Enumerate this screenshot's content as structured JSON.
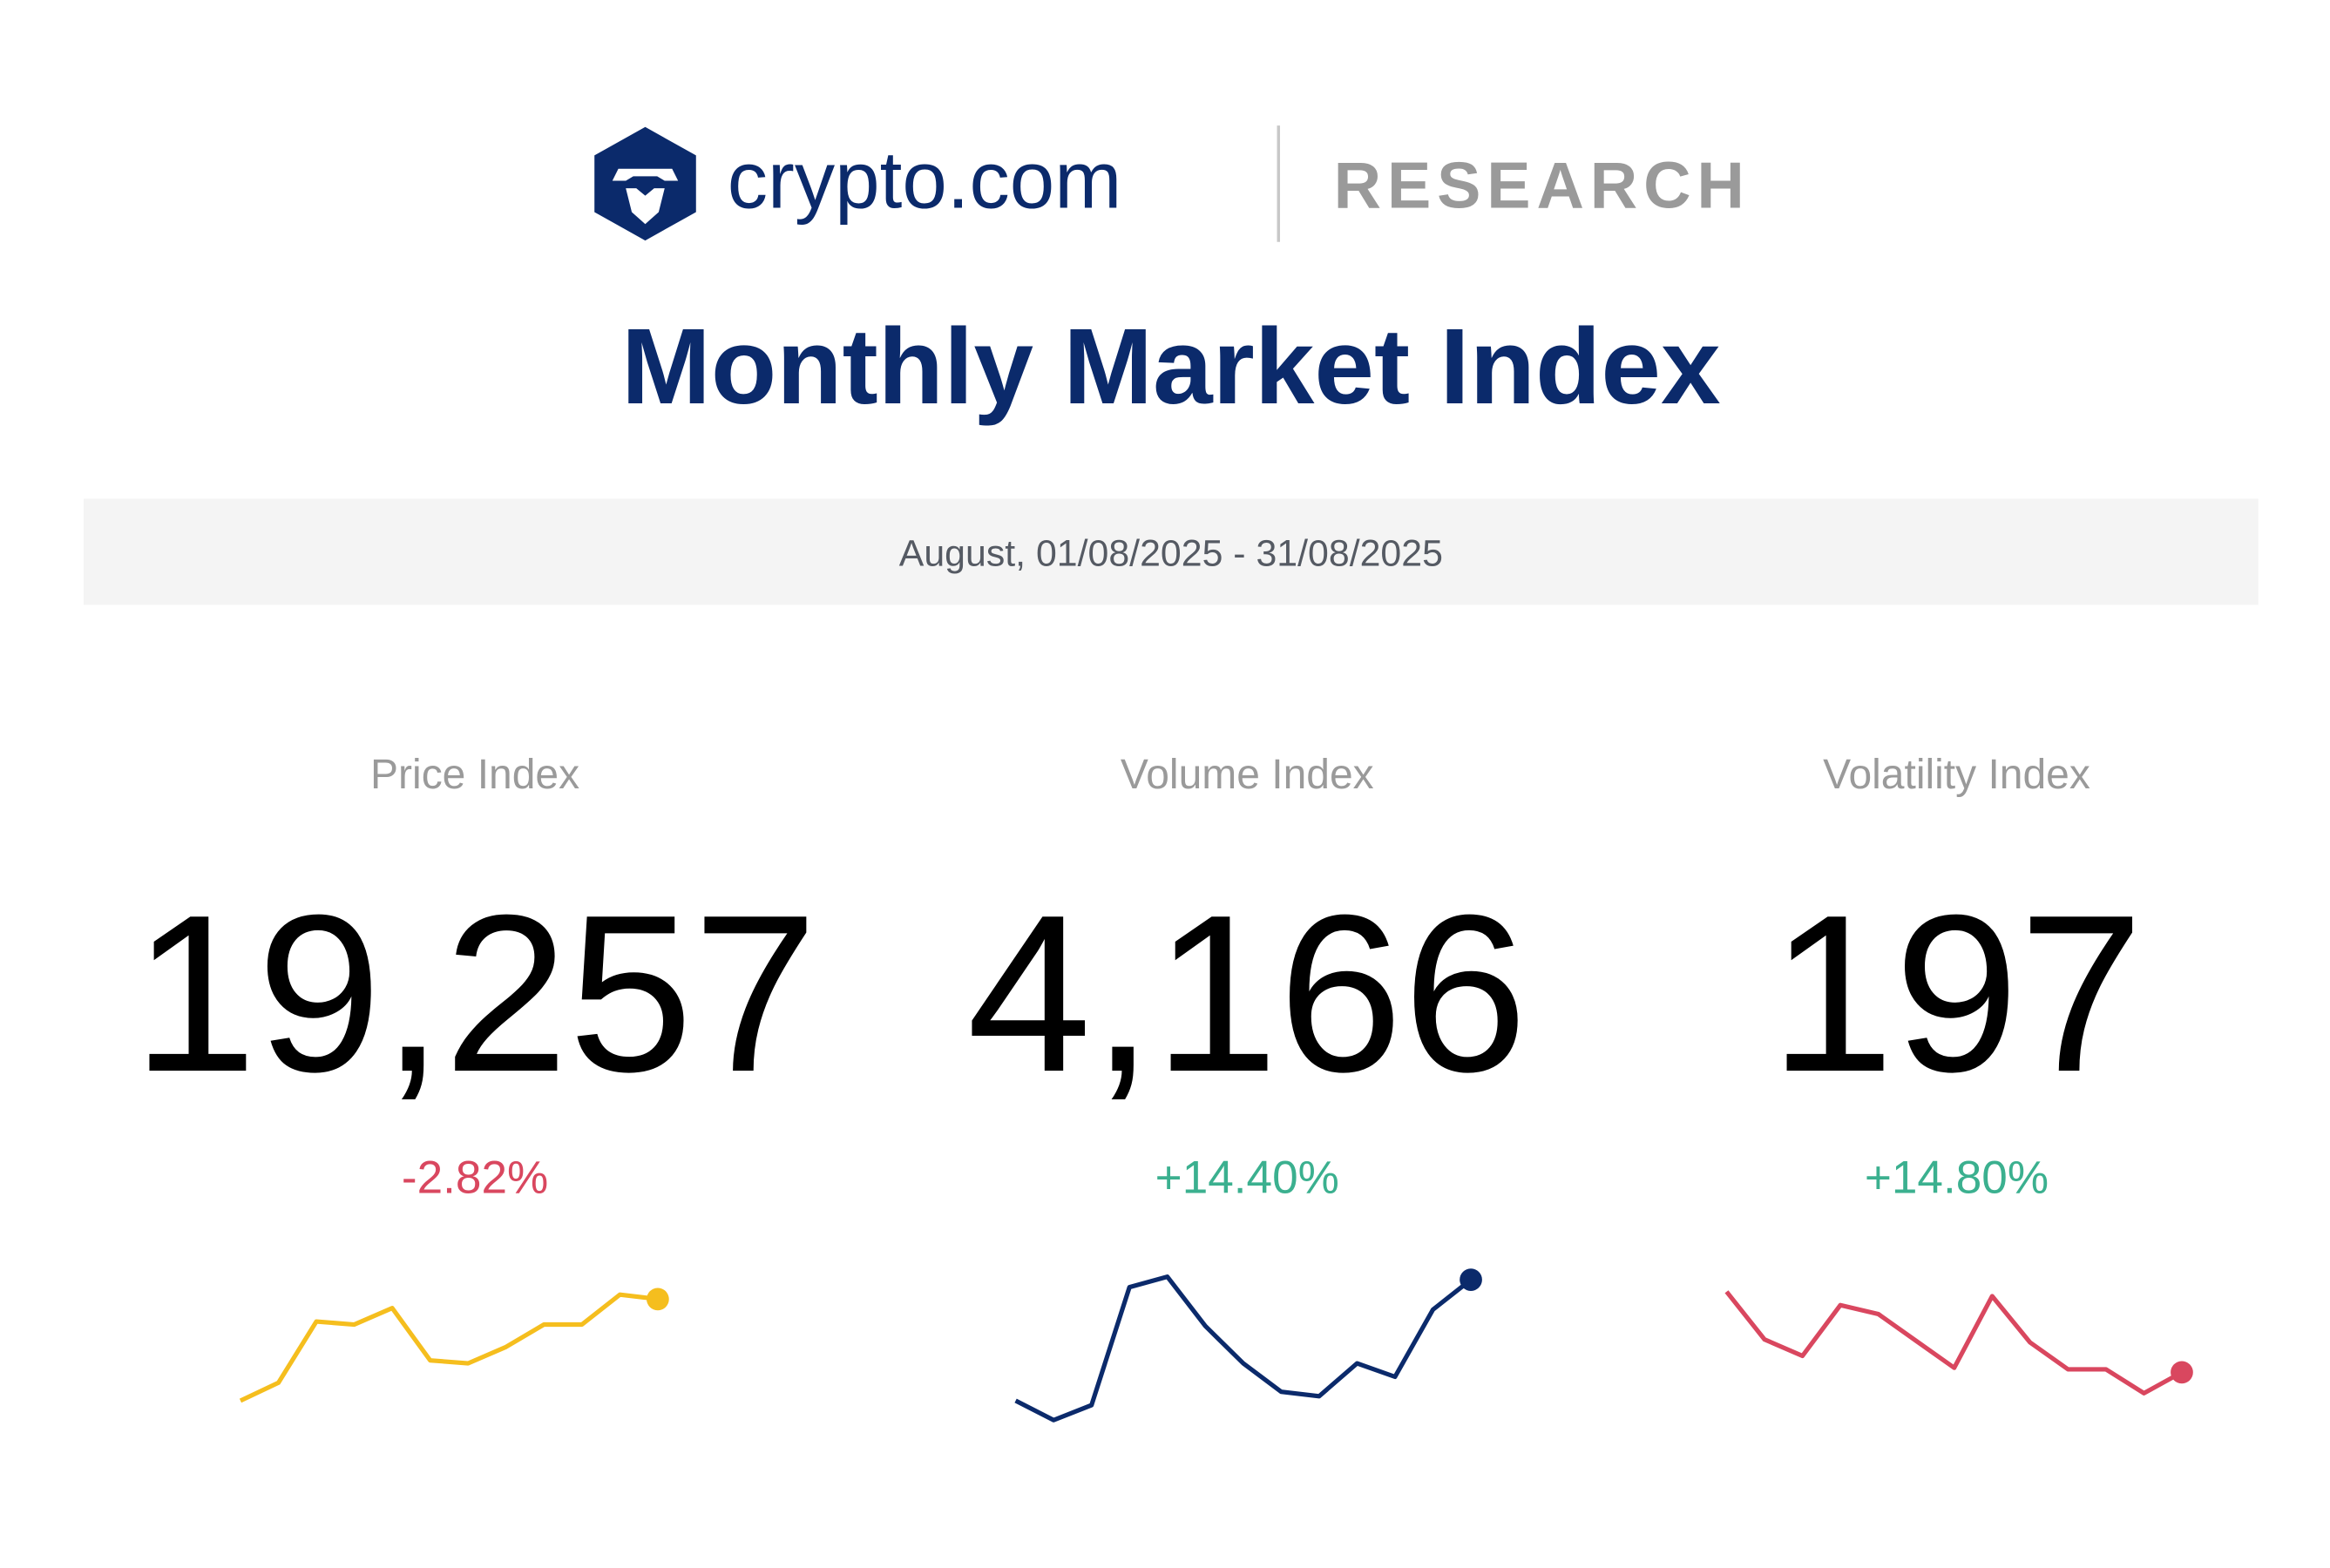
{
  "header": {
    "brand": "crypto.com",
    "section": "RESEARCH"
  },
  "title": "Monthly Market Index",
  "period": "August, 01/08/2025 - 31/08/2025",
  "indices": [
    {
      "name": "Price Index",
      "value": "19,257",
      "change": "-2.82%",
      "change_color": "#d9475f",
      "color": "#f5be1e",
      "sparkline": [
        22,
        34,
        75,
        73,
        84,
        49,
        47,
        58,
        73,
        73,
        93,
        90
      ]
    },
    {
      "name": "Volume Index",
      "value": "4,166",
      "change": "+14.40%",
      "change_color": "#3bb08f",
      "color": "#0b2a6b",
      "sparkline": [
        22,
        9,
        19,
        98,
        105,
        72,
        47,
        28,
        25,
        47,
        38,
        83,
        103
      ]
    },
    {
      "name": "Volatility Index",
      "value": "197",
      "change": "+14.80%",
      "change_color": "#3bb08f",
      "color": "#d9475f",
      "sparkline": [
        95,
        63,
        52,
        86,
        80,
        62,
        44,
        92,
        61,
        43,
        43,
        27,
        41
      ]
    }
  ]
}
